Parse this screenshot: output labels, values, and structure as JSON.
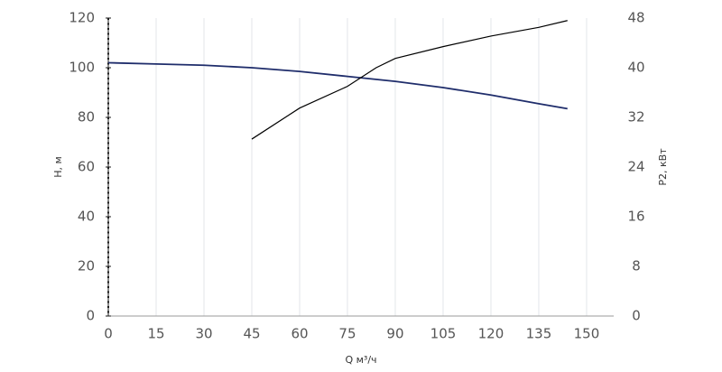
{
  "chart_data": {
    "type": "line",
    "x_label": "Q м³/ч",
    "y_label": "H, м",
    "y2_label": "P2, кВт",
    "xlim": [
      0,
      158.5
    ],
    "xticks": [
      0,
      15,
      30,
      45,
      60,
      75,
      90,
      105,
      120,
      135,
      150
    ],
    "ylim": [
      0,
      120
    ],
    "yticks": [
      0,
      20,
      40,
      60,
      80,
      100,
      120
    ],
    "y2lim": [
      0,
      48
    ],
    "y2ticks": [
      0,
      8,
      16,
      24,
      32,
      40,
      48
    ],
    "grid": true,
    "series": [
      {
        "name": "H",
        "color": "#1f2d6b",
        "x": [
          0,
          15,
          30,
          45,
          60,
          75,
          90,
          105,
          120,
          135,
          144
        ],
        "values": [
          102,
          101.5,
          101,
          100,
          98.5,
          96.5,
          94.5,
          92,
          89,
          85.5,
          83.5
        ]
      },
      {
        "name": "P2",
        "color": "#000000",
        "axis": "y2",
        "x": [
          45,
          60,
          75,
          84,
          90,
          105,
          120,
          135,
          144
        ],
        "values": [
          28.5,
          33.5,
          37,
          40,
          41.5,
          43.4,
          45.1,
          46.5,
          47.6
        ]
      }
    ]
  }
}
